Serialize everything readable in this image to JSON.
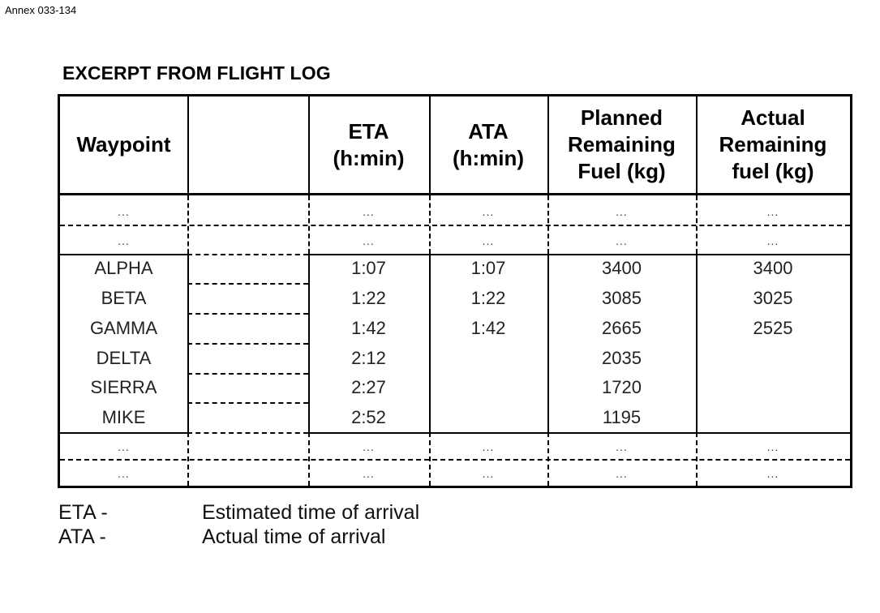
{
  "annex_label": "Annex 033-134",
  "title": "EXCERPT FROM FLIGHT LOG",
  "headers": {
    "waypoint": "Waypoint",
    "eta": [
      "ETA",
      "(h:min)"
    ],
    "ata": [
      "ATA",
      "(h:min)"
    ],
    "planned": [
      "Planned",
      "Remaining",
      "Fuel (kg)"
    ],
    "actual": [
      "Actual",
      "Remaining",
      "fuel (kg)"
    ]
  },
  "ellipsis": "...",
  "rows": [
    {
      "waypoint": "ALPHA",
      "eta": "1:07",
      "ata": "1:07",
      "planned": "3400",
      "actual": "3400"
    },
    {
      "waypoint": "BETA",
      "eta": "1:22",
      "ata": "1:22",
      "planned": "3085",
      "actual": "3025"
    },
    {
      "waypoint": "GAMMA",
      "eta": "1:42",
      "ata": "1:42",
      "planned": "2665",
      "actual": "2525"
    },
    {
      "waypoint": "DELTA",
      "eta": "2:12",
      "ata": "",
      "planned": "2035",
      "actual": ""
    },
    {
      "waypoint": "SIERRA",
      "eta": "2:27",
      "ata": "",
      "planned": "1720",
      "actual": ""
    },
    {
      "waypoint": "MIKE",
      "eta": "2:52",
      "ata": "",
      "planned": "1195",
      "actual": ""
    }
  ],
  "legend": [
    {
      "abbr": "ETA -",
      "meaning": "Estimated time of arrival"
    },
    {
      "abbr": "ATA -",
      "meaning": "Actual time of arrival"
    }
  ]
}
